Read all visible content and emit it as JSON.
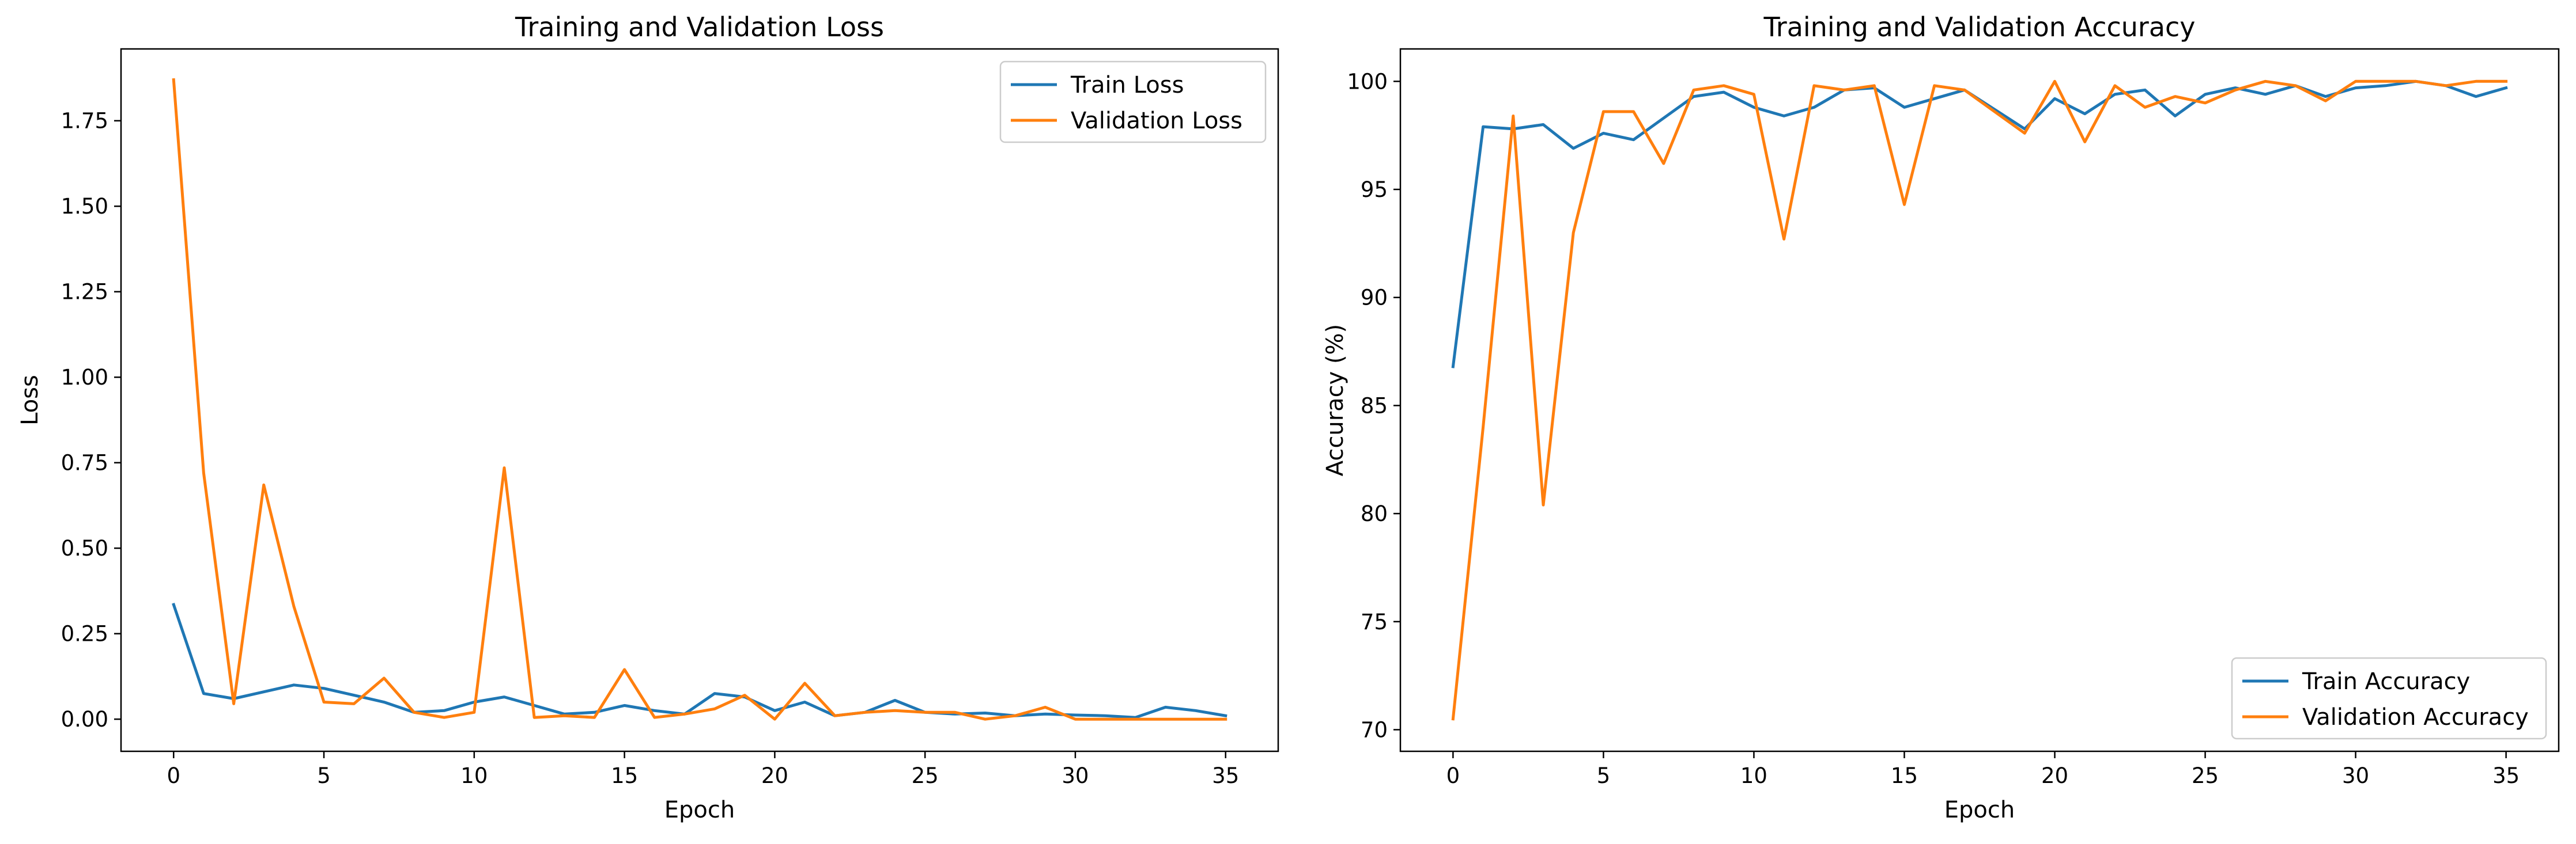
{
  "chart_data": [
    {
      "type": "line",
      "title": "Training and Validation Loss",
      "xlabel": "Epoch",
      "ylabel": "Loss",
      "xlim": [
        -1.75,
        36.75
      ],
      "ylim": [
        -0.094,
        1.96
      ],
      "xticks": [
        0,
        5,
        10,
        15,
        20,
        25,
        30,
        35
      ],
      "xtick_labels": [
        "0",
        "5",
        "10",
        "15",
        "20",
        "25",
        "30",
        "35"
      ],
      "yticks": [
        0,
        0.25,
        0.5,
        0.75,
        1.0,
        1.25,
        1.5,
        1.75
      ],
      "ytick_labels": [
        "0.00",
        "0.25",
        "0.50",
        "0.75",
        "1.00",
        "1.25",
        "1.50",
        "1.75"
      ],
      "grid": false,
      "legend_position": "top-right",
      "x": [
        0,
        1,
        2,
        3,
        4,
        5,
        6,
        7,
        8,
        9,
        10,
        11,
        12,
        13,
        14,
        15,
        16,
        17,
        18,
        19,
        20,
        21,
        22,
        23,
        24,
        25,
        26,
        27,
        28,
        29,
        30,
        31,
        32,
        33,
        34,
        35
      ],
      "series": [
        {
          "name": "Train Loss",
          "color": "#1f77b4",
          "values": [
            0.335,
            0.075,
            0.06,
            0.08,
            0.1,
            0.09,
            0.07,
            0.05,
            0.02,
            0.025,
            0.05,
            0.065,
            0.04,
            0.015,
            0.02,
            0.04,
            0.025,
            0.015,
            0.075,
            0.065,
            0.025,
            0.05,
            0.01,
            0.02,
            0.055,
            0.02,
            0.015,
            0.018,
            0.01,
            0.015,
            0.012,
            0.01,
            0.005,
            0.035,
            0.025,
            0.01
          ]
        },
        {
          "name": "Validation Loss",
          "color": "#ff7f0e",
          "values": [
            1.87,
            0.72,
            0.045,
            0.685,
            0.33,
            0.05,
            0.045,
            0.12,
            0.02,
            0.005,
            0.02,
            0.735,
            0.005,
            0.01,
            0.005,
            0.145,
            0.005,
            0.015,
            0.03,
            0.07,
            0.0,
            0.105,
            0.01,
            0.02,
            0.025,
            0.02,
            0.02,
            0.0,
            0.01,
            0.035,
            0.0,
            0.0,
            0.0,
            0.0,
            0.0,
            0.0
          ]
        }
      ]
    },
    {
      "type": "line",
      "title": "Training and Validation Accuracy",
      "xlabel": "Epoch",
      "ylabel": "Accuracy (%)",
      "xlim": [
        -1.75,
        36.75
      ],
      "ylim": [
        69.0,
        101.5
      ],
      "xticks": [
        0,
        5,
        10,
        15,
        20,
        25,
        30,
        35
      ],
      "xtick_labels": [
        "0",
        "5",
        "10",
        "15",
        "20",
        "25",
        "30",
        "35"
      ],
      "yticks": [
        70,
        75,
        80,
        85,
        90,
        95,
        100
      ],
      "ytick_labels": [
        "70",
        "75",
        "80",
        "85",
        "90",
        "95",
        "100"
      ],
      "grid": false,
      "legend_position": "bottom-right",
      "x": [
        0,
        1,
        2,
        3,
        4,
        5,
        6,
        7,
        8,
        9,
        10,
        11,
        12,
        13,
        14,
        15,
        16,
        17,
        18,
        19,
        20,
        21,
        22,
        23,
        24,
        25,
        26,
        27,
        28,
        29,
        30,
        31,
        32,
        33,
        34,
        35
      ],
      "series": [
        {
          "name": "Train Accuracy",
          "color": "#1f77b4",
          "values": [
            86.8,
            97.9,
            97.8,
            98.0,
            96.9,
            97.6,
            97.3,
            98.3,
            99.3,
            99.5,
            98.8,
            98.4,
            98.8,
            99.6,
            99.7,
            98.8,
            99.2,
            99.6,
            98.7,
            97.8,
            99.2,
            98.5,
            99.4,
            99.6,
            98.4,
            99.4,
            99.7,
            99.4,
            99.8,
            99.3,
            99.7,
            99.8,
            100.0,
            99.8,
            99.3,
            99.7
          ]
        },
        {
          "name": "Validation Accuracy",
          "color": "#ff7f0e",
          "values": [
            70.5,
            84.0,
            98.4,
            80.4,
            93.0,
            98.6,
            98.6,
            96.2,
            99.6,
            99.8,
            99.4,
            92.7,
            99.8,
            99.6,
            99.8,
            94.3,
            99.8,
            99.6,
            98.6,
            97.6,
            100.0,
            97.2,
            99.8,
            98.8,
            99.3,
            99.0,
            99.6,
            100.0,
            99.8,
            99.1,
            100.0,
            100.0,
            100.0,
            99.8,
            100.0,
            100.0
          ]
        }
      ]
    }
  ]
}
